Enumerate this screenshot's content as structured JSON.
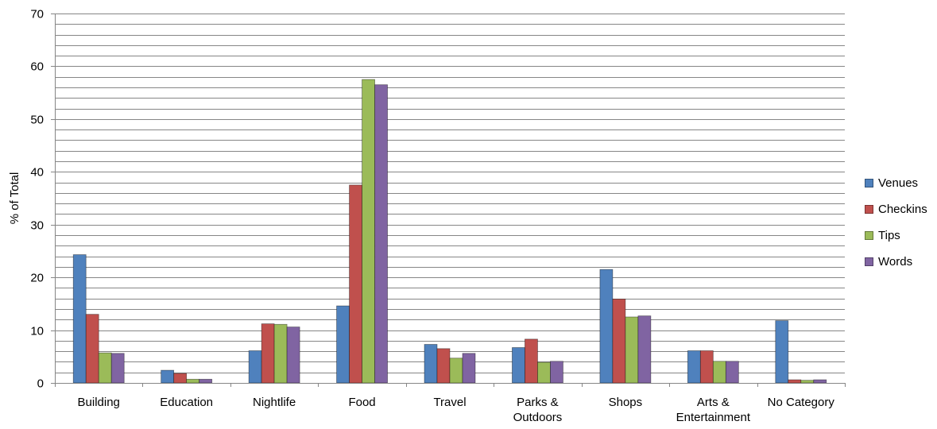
{
  "chart_data": {
    "type": "bar",
    "title": "",
    "xlabel": "",
    "ylabel": "% of Total",
    "ylim": [
      0,
      70
    ],
    "y_ticks": [
      0,
      10,
      20,
      30,
      40,
      50,
      60,
      70
    ],
    "minor_gridline_step": 2,
    "grid": true,
    "legend_position": "right",
    "categories": [
      [
        "Building"
      ],
      [
        "Education"
      ],
      [
        "Nightlife"
      ],
      [
        "Food"
      ],
      [
        "Travel"
      ],
      [
        "Parks &",
        "Outdoors"
      ],
      [
        "Shops"
      ],
      [
        "Arts &",
        "Entertainment"
      ],
      [
        "No Category"
      ]
    ],
    "series": [
      {
        "name": "Venues",
        "color": "#4F81BD",
        "values": [
          24.3,
          2.4,
          6.1,
          14.6,
          7.3,
          6.7,
          21.5,
          6.1,
          11.8
        ]
      },
      {
        "name": "Checkins",
        "color": "#C0504D",
        "values": [
          13.0,
          1.8,
          11.2,
          37.5,
          6.5,
          8.3,
          15.9,
          6.1,
          0.6
        ]
      },
      {
        "name": "Tips",
        "color": "#9BBB59",
        "values": [
          5.7,
          0.7,
          11.1,
          57.5,
          4.7,
          3.9,
          12.5,
          4.1,
          0.5
        ]
      },
      {
        "name": "Words",
        "color": "#8064A2",
        "values": [
          5.6,
          0.7,
          10.6,
          56.5,
          5.6,
          4.1,
          12.7,
          4.1,
          0.6
        ]
      }
    ]
  }
}
